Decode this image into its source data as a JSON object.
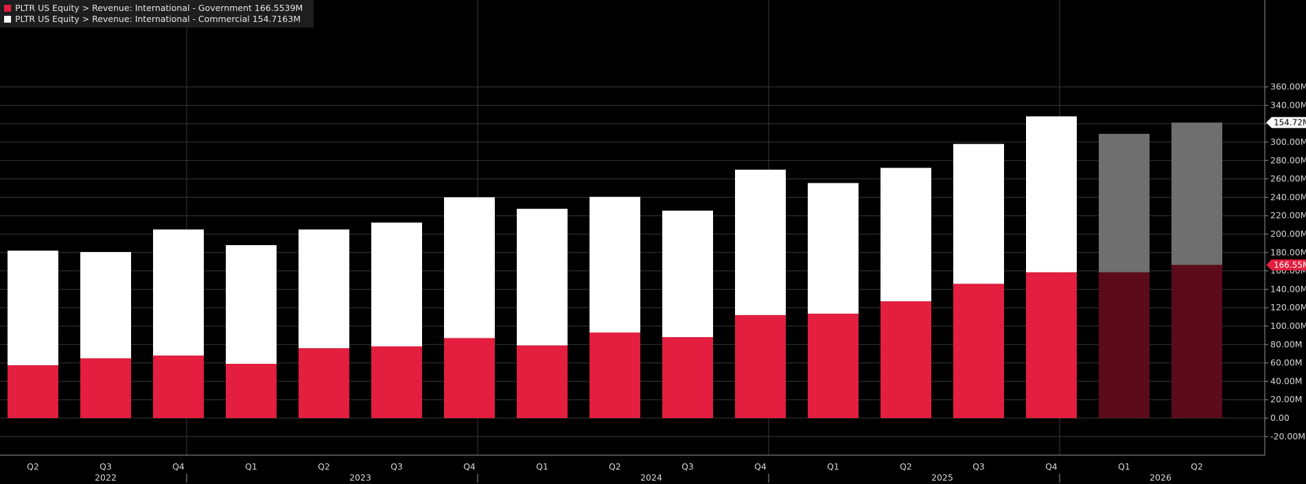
{
  "legend": [
    {
      "label": "PLTR US Equity > Revenue: International - Government",
      "value": "166.5539M",
      "color": "#e31e3e"
    },
    {
      "label": "PLTR US Equity > Revenue: International - Commercial",
      "value": "154.7163M",
      "color": "#ffffff"
    }
  ],
  "chart_data": {
    "type": "bar",
    "stacked": true,
    "categories": [
      "Q2",
      "Q3",
      "Q4",
      "Q1",
      "Q2",
      "Q3",
      "Q4",
      "Q1",
      "Q2",
      "Q3",
      "Q4",
      "Q1",
      "Q2",
      "Q3",
      "Q4",
      "Q1",
      "Q2"
    ],
    "year_labels": [
      {
        "label": "2022",
        "index": 1
      },
      {
        "label": "2023",
        "index": 4.5
      },
      {
        "label": "2024",
        "index": 8.5
      },
      {
        "label": "2025",
        "index": 12.5
      },
      {
        "label": "2026",
        "index": 15.5
      }
    ],
    "year_separators_after_index": [
      2,
      6,
      10,
      14
    ],
    "estimate_from_index": 15,
    "series": [
      {
        "name": "PLTR US Equity > Revenue: International - Government",
        "color": "#e31e3e",
        "estimate_color": "#5c0b1b",
        "values": [
          57.5,
          65.0,
          68.0,
          59.0,
          76.0,
          78.0,
          87.0,
          79.0,
          93.0,
          88.0,
          112.0,
          113.5,
          127.0,
          146.0,
          158.5,
          158.5,
          166.5539
        ]
      },
      {
        "name": "PLTR US Equity > Revenue: International - Commercial",
        "color": "#ffffff",
        "estimate_color": "#6f6f6f",
        "values": [
          124.5,
          115.5,
          137.0,
          129.0,
          129.0,
          134.5,
          153.0,
          148.5,
          147.5,
          137.5,
          158.0,
          142.0,
          145.0,
          152.0,
          169.5,
          150.5,
          154.7163
        ]
      }
    ],
    "ylim": [
      -30,
      365
    ],
    "yticks": [
      -20,
      0,
      20,
      40,
      60,
      80,
      100,
      120,
      140,
      160,
      180,
      200,
      220,
      240,
      260,
      280,
      300,
      320,
      340,
      360
    ],
    "ytick_labels": [
      "-20.00M",
      "0.00",
      "20.00M",
      "40.00M",
      "60.00M",
      "80.00M",
      "100.00M",
      "120.00M",
      "140.00M",
      "160.00M",
      "180.00M",
      "200.00M",
      "220.00M",
      "240.00M",
      "260.00M",
      "280.00M",
      "300.00M",
      "320.00M",
      "340.00M",
      "360.00M"
    ],
    "last_value_tags": [
      {
        "label": "166.55M",
        "value": 166.5539,
        "color": "#e31e3e",
        "text_color": "#ffffff"
      },
      {
        "label": "154.72M",
        "value": 321.27,
        "color": "#ffffff",
        "text_color": "#000000"
      }
    ],
    "grid": true
  }
}
